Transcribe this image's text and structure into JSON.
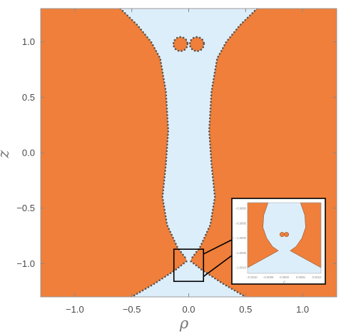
{
  "chart_data": {
    "type": "region plot",
    "xlabel": "ρ",
    "ylabel": "z",
    "xlim": [
      -1.3,
      1.3
    ],
    "ylim": [
      -1.3,
      1.3
    ],
    "grid": false,
    "colors": {
      "region": "#ef7f3a",
      "background": "#ddeefb",
      "boundary": "#555555",
      "frame": "#999999"
    },
    "x_ticks": [
      {
        "value": -1.0,
        "label": "−1.0"
      },
      {
        "value": -0.5,
        "label": "−0.5"
      },
      {
        "value": 0.0,
        "label": "0.0"
      },
      {
        "value": 0.5,
        "label": "0.5"
      },
      {
        "value": 1.0,
        "label": "1.0"
      }
    ],
    "y_ticks": [
      {
        "value": 1.0,
        "label": "1.0"
      },
      {
        "value": 0.5,
        "label": "0.5"
      },
      {
        "value": 0.0,
        "label": "0.0"
      },
      {
        "value": -0.5,
        "label": "−0.5"
      },
      {
        "value": -1.0,
        "label": "−1.0"
      }
    ],
    "left_region_boundary": [
      [
        -0.6,
        1.3
      ],
      [
        -0.45,
        1.15
      ],
      [
        -0.33,
        1.0
      ],
      [
        -0.25,
        0.85
      ],
      [
        -0.2,
        0.55
      ],
      [
        -0.18,
        0.2
      ],
      [
        -0.2,
        -0.1
      ],
      [
        -0.23,
        -0.4
      ],
      [
        -0.19,
        -0.65
      ],
      [
        -0.1,
        -0.85
      ],
      [
        -0.02,
        -0.96
      ]
    ],
    "right_region_boundary": [
      [
        0.6,
        1.3
      ],
      [
        0.45,
        1.15
      ],
      [
        0.33,
        1.0
      ],
      [
        0.25,
        0.85
      ],
      [
        0.2,
        0.55
      ],
      [
        0.18,
        0.2
      ],
      [
        0.2,
        -0.1
      ],
      [
        0.23,
        -0.4
      ],
      [
        0.19,
        -0.65
      ],
      [
        0.1,
        -0.85
      ],
      [
        0.02,
        -0.96
      ]
    ],
    "bottom_left_region_boundary": [
      [
        -0.02,
        -0.98
      ],
      [
        -0.12,
        -1.06
      ],
      [
        -0.3,
        -1.18
      ],
      [
        -0.5,
        -1.3
      ]
    ],
    "bottom_right_region_boundary": [
      [
        0.02,
        -0.98
      ],
      [
        0.12,
        -1.06
      ],
      [
        0.3,
        -1.18
      ],
      [
        0.5,
        -1.3
      ]
    ],
    "islands": [
      {
        "center": [
          -0.072,
          0.98
        ],
        "radius": 0.062
      },
      {
        "center": [
          0.072,
          0.98
        ],
        "radius": 0.062
      }
    ],
    "zoom_box": {
      "x": [
        -0.13,
        0.13
      ],
      "y": [
        -1.16,
        -0.87
      ]
    },
    "inset": {
      "x_ticks": [
        "−0.0010",
        "−0.0005",
        "0.0000",
        "0.0005",
        "0.0010"
      ],
      "y_ticks": [
        "−0.9990",
        "−0.9995",
        "−1.0000",
        "−1.0005",
        "−1.0010"
      ],
      "xlabel": "ρ",
      "ylabel": "z"
    }
  }
}
